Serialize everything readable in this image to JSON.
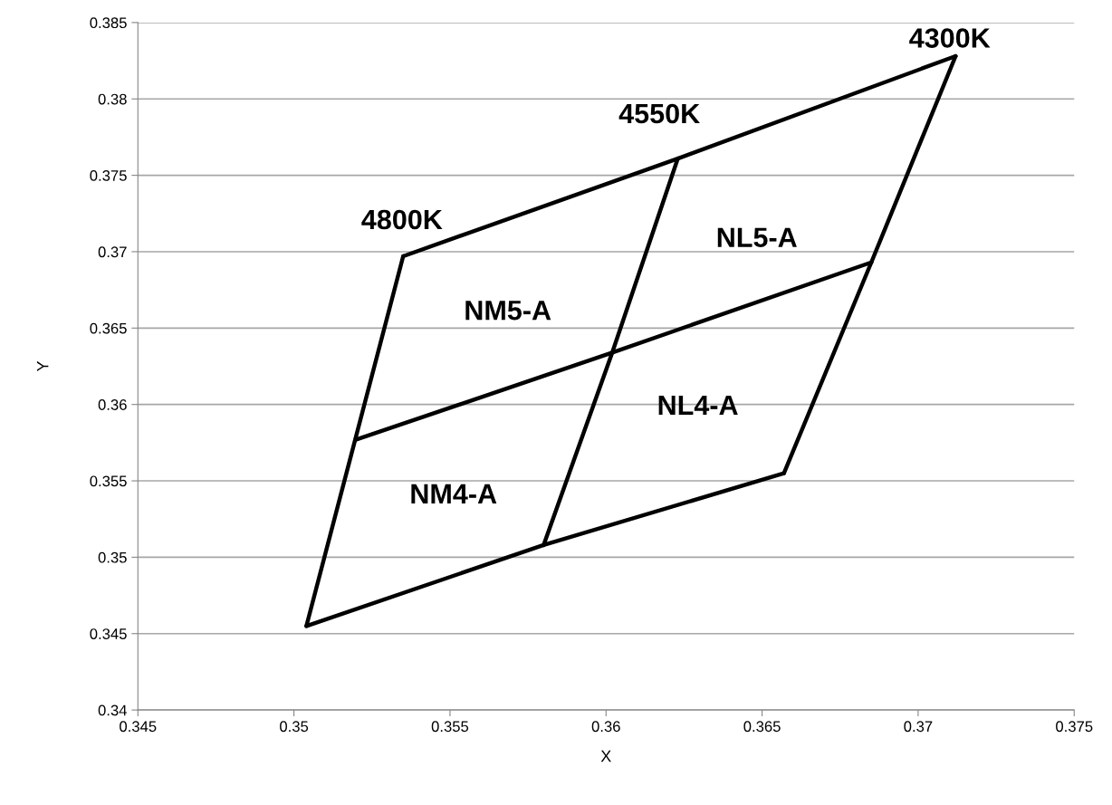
{
  "chart_data": {
    "type": "line",
    "xlabel": "X",
    "ylabel": "Y",
    "color": "#000000",
    "grid": "y",
    "marker": "none",
    "line_style": "solid",
    "xlim": [
      0.345,
      0.375
    ],
    "xticks": [
      0.345,
      0.35,
      0.355,
      0.36,
      0.365,
      0.37,
      0.375
    ],
    "ylim": [
      0.34,
      0.385
    ],
    "yticks": [
      0.34,
      0.345,
      0.35,
      0.355,
      0.36,
      0.365,
      0.37,
      0.375,
      0.38,
      0.385
    ],
    "series": [
      {
        "x": [
          0.3504,
          0.3535
        ],
        "values": [
          0.3455,
          0.3697
        ]
      },
      {
        "x": [
          0.3535,
          0.3623,
          0.3712
        ],
        "values": [
          0.3697,
          0.3761,
          0.3828
        ]
      },
      {
        "x": [
          0.3657,
          0.3685,
          0.3712
        ],
        "values": [
          0.3555,
          0.3693,
          0.3828
        ]
      },
      {
        "x": [
          0.3504,
          0.358,
          0.3657
        ],
        "values": [
          0.3455,
          0.3508,
          0.3555
        ]
      },
      {
        "x": [
          0.352,
          0.3602,
          0.3685
        ],
        "values": [
          0.3577,
          0.3634,
          0.3693
        ]
      },
      {
        "x": [
          0.358,
          0.3602,
          0.3623
        ],
        "values": [
          0.3508,
          0.3634,
          0.3761
        ]
      }
    ],
    "annotations": [
      "4800K",
      "4550K",
      "4300K",
      "NM5-A",
      "NL5-A",
      "NM4-A",
      "NL4-A"
    ]
  }
}
